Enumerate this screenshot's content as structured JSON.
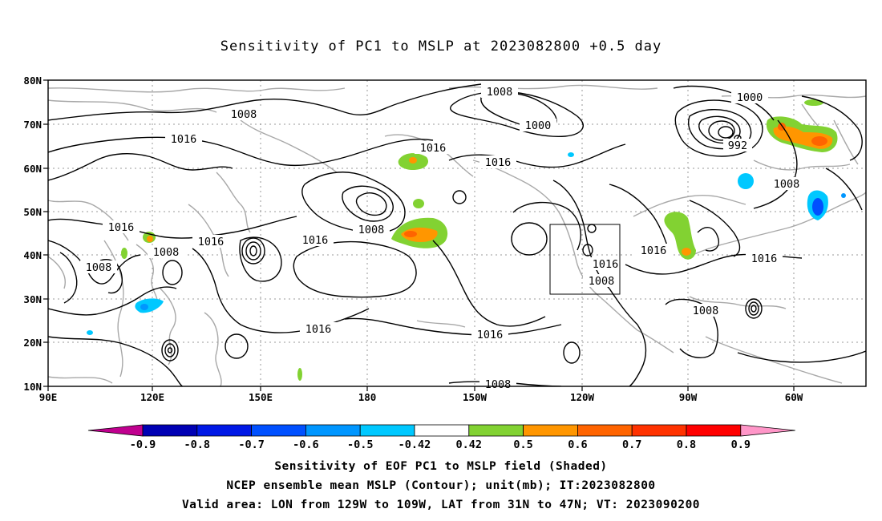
{
  "title": "Sensitivity of PC1 to MSLP at 2023082800 +0.5 day",
  "lat_labels": [
    "80N",
    "70N",
    "60N",
    "50N",
    "40N",
    "30N",
    "20N",
    "10N"
  ],
  "lon_labels": [
    "90E",
    "120E",
    "150E",
    "180",
    "150W",
    "120W",
    "90W",
    "60W"
  ],
  "contour_labels": [
    "1008",
    "1016",
    "1016",
    "1008",
    "1016",
    "1016",
    "1008",
    "1016",
    "1008",
    "1016",
    "1008",
    "1000",
    "1016",
    "1000",
    "992",
    "1008",
    "1016",
    "1016",
    "1008",
    "1016",
    "1016",
    "1008",
    "1008"
  ],
  "colorbar": {
    "labels": [
      "-0.9",
      "-0.8",
      "-0.7",
      "-0.6",
      "-0.5",
      "-0.42",
      "0.42",
      "0.5",
      "0.6",
      "0.7",
      "0.8",
      "0.9"
    ],
    "colors": [
      "#c0008f",
      "#0000b4",
      "#0018e6",
      "#0050ff",
      "#0096ff",
      "#00c8ff",
      "#ffffff",
      "#82d232",
      "#ff9600",
      "#ff6400",
      "#ff3200",
      "#ff0000",
      "#ff96c8"
    ]
  },
  "captions": {
    "line1": "Sensitivity of EOF PC1 to MSLP field (Shaded)",
    "line2": "NCEP ensemble mean MSLP (Contour); unit(mb); IT:2023082800",
    "line3": "Valid area: LON from 129W to 109W, LAT from 31N to 47N; VT: 2023090200"
  }
}
